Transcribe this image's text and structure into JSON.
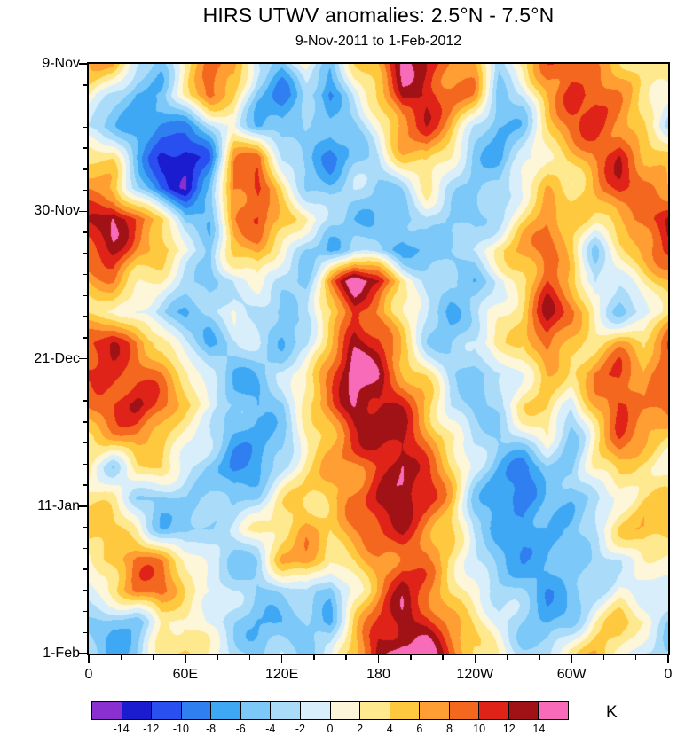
{
  "header": {
    "title": "HIRS UTWV anomalies: 2.5°N - 7.5°N",
    "subtitle": "9-Nov-2011 to 1-Feb-2012"
  },
  "chart_data": {
    "type": "heatmap",
    "title": "HIRS UTWV anomalies: 2.5°N - 7.5°N",
    "subtitle": "9-Nov-2011 to 1-Feb-2012",
    "x_axis": {
      "tick_labels": [
        "0",
        "60E",
        "120E",
        "180",
        "120W",
        "60W",
        "0"
      ],
      "tick_lons": [
        0,
        60,
        120,
        180,
        240,
        300,
        360
      ],
      "minor_step_deg": 20,
      "range_deg": [
        0,
        360
      ]
    },
    "y_axis": {
      "tick_labels": [
        "9-Nov",
        "30-Nov",
        "21-Dec",
        "11-Jan",
        "1-Feb"
      ],
      "tick_days": [
        0,
        21,
        42,
        63,
        84
      ],
      "minor_step_days": 3,
      "range_days": [
        0,
        84
      ]
    },
    "colorbar": {
      "unit": "K",
      "boundaries": [
        -14,
        -12,
        -10,
        -8,
        -6,
        -4,
        -2,
        0,
        2,
        4,
        6,
        8,
        10,
        12,
        14
      ],
      "colors": [
        "#8a2fd0",
        "#1b1bd0",
        "#2a4ff0",
        "#2f7ff0",
        "#3fa8f5",
        "#7cc8f8",
        "#aadcfa",
        "#d8eefb",
        "#fdf6d8",
        "#ffe98f",
        "#ffc93f",
        "#ff9e33",
        "#f4671f",
        "#e02318",
        "#a01216",
        "#f76bb8"
      ]
    },
    "grid": {
      "rows": 20,
      "cols": 25,
      "units": "K",
      "values": [
        [
          6,
          5,
          -2,
          -5,
          3,
          10,
          7,
          -3,
          -6,
          2,
          -4,
          3,
          6,
          14,
          12,
          8,
          8,
          -4,
          2,
          9,
          11,
          8,
          5,
          2,
          3
        ],
        [
          2,
          -3,
          -6,
          -4,
          2,
          8,
          4,
          -5,
          -8,
          -4,
          -9,
          -2,
          4,
          13,
          13,
          9,
          6,
          -5,
          -2,
          7,
          12,
          10,
          6,
          3,
          2
        ],
        [
          -2,
          -4,
          -8,
          -10,
          -9,
          -3,
          2,
          -6,
          -7,
          -3,
          -6,
          -4,
          2,
          8,
          10,
          6,
          -2,
          -6,
          -4,
          3,
          8,
          11,
          9,
          4,
          -2
        ],
        [
          3,
          2,
          -6,
          -12,
          -13,
          -9,
          6,
          9,
          -2,
          -5,
          -8,
          -5,
          -3,
          4,
          6,
          2,
          -4,
          -7,
          -3,
          2,
          5,
          9,
          12,
          6,
          3
        ],
        [
          8,
          6,
          -3,
          -10,
          -14,
          -8,
          9,
          11,
          4,
          -4,
          -6,
          -3,
          -5,
          -2,
          3,
          -3,
          -6,
          -4,
          2,
          6,
          3,
          6,
          10,
          8,
          8
        ],
        [
          12,
          15,
          9,
          4,
          -6,
          -4,
          8,
          10,
          5,
          2,
          -3,
          -5,
          -4,
          -6,
          -3,
          -5,
          -4,
          -2,
          3,
          8,
          4,
          2,
          7,
          10,
          12
        ],
        [
          10,
          12,
          7,
          6,
          2,
          -5,
          4,
          6,
          2,
          -4,
          -6,
          -2,
          -5,
          -8,
          -5,
          -3,
          -2,
          3,
          6,
          9,
          5,
          -3,
          2,
          6,
          10
        ],
        [
          6,
          8,
          4,
          2,
          -4,
          -6,
          -2,
          3,
          -3,
          -6,
          8,
          15,
          13,
          4,
          -2,
          -5,
          -6,
          -2,
          4,
          11,
          6,
          -4,
          -2,
          3,
          6
        ],
        [
          4,
          3,
          -2,
          -4,
          -6,
          -3,
          2,
          -4,
          -6,
          -2,
          3,
          12,
          8,
          2,
          -4,
          -6,
          -3,
          2,
          5,
          12,
          8,
          2,
          -4,
          -2,
          4
        ],
        [
          9,
          11,
          8,
          5,
          -2,
          -6,
          -4,
          -2,
          -5,
          -3,
          6,
          13,
          10,
          4,
          -2,
          -4,
          -2,
          4,
          2,
          10,
          6,
          3,
          6,
          4,
          9
        ],
        [
          11,
          12,
          10,
          7,
          3,
          -3,
          -6,
          -4,
          -2,
          2,
          8,
          16,
          14,
          8,
          3,
          -4,
          -6,
          -3,
          2,
          6,
          3,
          8,
          10,
          6,
          11
        ],
        [
          8,
          10,
          12,
          9,
          4,
          2,
          -4,
          -7,
          -5,
          3,
          9,
          15,
          13,
          10,
          5,
          -2,
          -4,
          -2,
          3,
          4,
          -2,
          6,
          12,
          9,
          8
        ],
        [
          4,
          6,
          8,
          6,
          2,
          -3,
          -7,
          -8,
          -4,
          2,
          6,
          10,
          12,
          13,
          8,
          3,
          -3,
          -5,
          -2,
          2,
          -4,
          3,
          9,
          6,
          4
        ],
        [
          2,
          -2,
          3,
          4,
          -2,
          -5,
          -8,
          -6,
          -3,
          3,
          5,
          8,
          11,
          15,
          10,
          4,
          -2,
          -6,
          -8,
          -4,
          -6,
          2,
          5,
          3,
          2
        ],
        [
          3,
          2,
          -4,
          -6,
          -3,
          -2,
          -5,
          -4,
          2,
          4,
          6,
          9,
          12,
          13,
          11,
          6,
          -3,
          -8,
          -10,
          -6,
          -6,
          -3,
          2,
          4,
          3
        ],
        [
          5,
          4,
          2,
          -4,
          -6,
          -4,
          -2,
          2,
          5,
          7,
          4,
          7,
          10,
          12,
          9,
          5,
          -4,
          -7,
          -9,
          -5,
          -4,
          -2,
          3,
          6,
          5
        ],
        [
          3,
          6,
          9,
          7,
          2,
          -2,
          -4,
          -3,
          6,
          7,
          2,
          4,
          8,
          10,
          7,
          3,
          -2,
          -5,
          -6,
          -7,
          -6,
          -4,
          -2,
          2,
          3
        ],
        [
          -2,
          3,
          8,
          9,
          4,
          2,
          -3,
          -5,
          -4,
          -2,
          -5,
          2,
          6,
          12,
          9,
          4,
          2,
          -3,
          -5,
          -8,
          -6,
          -3,
          2,
          -2,
          -2
        ],
        [
          -4,
          -6,
          -5,
          3,
          2,
          -2,
          -4,
          -6,
          -5,
          -4,
          -6,
          3,
          10,
          14,
          12,
          7,
          3,
          -2,
          -4,
          -6,
          -4,
          2,
          4,
          2,
          -4
        ],
        [
          -3,
          -6,
          -4,
          2,
          4,
          2,
          -2,
          -4,
          -3,
          -5,
          -2,
          6,
          14,
          16,
          15,
          9,
          4,
          2,
          -2,
          -3,
          2,
          5,
          3,
          -2,
          -3
        ]
      ]
    }
  }
}
